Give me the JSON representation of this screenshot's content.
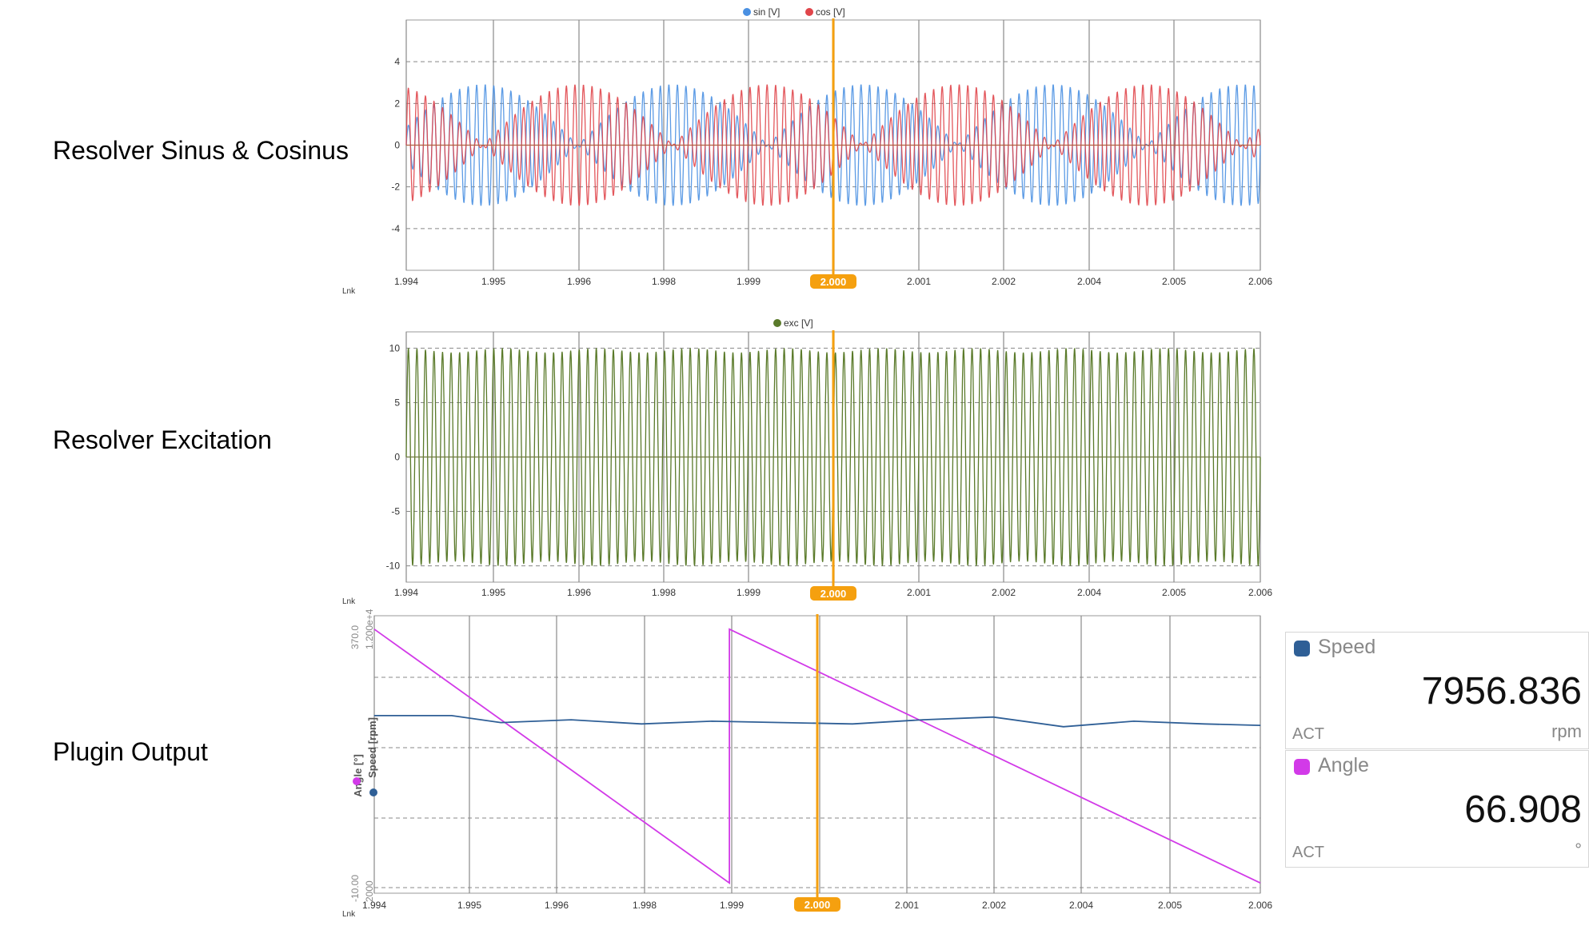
{
  "row_labels": [
    "Resolver Sinus & Cosinus",
    "Resolver Excitation",
    "Plugin Output"
  ],
  "x_ticks": [
    "1.994",
    "1.995",
    "1.996",
    "1.998",
    "1.999",
    "2.000",
    "2.001",
    "2.002",
    "2.004",
    "2.005",
    "2.006"
  ],
  "cursor_label": "2.000",
  "lnk_label": "Lnk",
  "colors": {
    "sin": "#4a90e2",
    "cos": "#e0454a",
    "exc": "#5a7a2a",
    "angle": "#d23ae8",
    "speed": "#2f5f96",
    "cursor": "#f5a00f",
    "grid": "#808080"
  },
  "chart_data": [
    {
      "type": "line",
      "legend": [
        "sin [V]",
        "cos [V]"
      ],
      "y_ticks": [
        "4",
        "2",
        "0",
        "-2",
        "-4"
      ],
      "ylim": [
        -6,
        6
      ],
      "xlim": [
        1.9937,
        2.0063
      ],
      "series": [
        {
          "name": "sin [V]",
          "description_values": {
            "amplitude": 2.9,
            "carrier_cycles": 100,
            "envelope": "sin"
          }
        },
        {
          "name": "cos [V]",
          "description_values": {
            "amplitude": 2.9,
            "carrier_cycles": 100,
            "envelope": "cos"
          }
        }
      ],
      "cursor_x": 2.0
    },
    {
      "type": "line",
      "legend": [
        "exc [V]"
      ],
      "y_ticks": [
        "10",
        "5",
        "0",
        "-5",
        "-10"
      ],
      "ylim": [
        -11.5,
        11.5
      ],
      "xlim": [
        1.9937,
        2.0063
      ],
      "series": [
        {
          "name": "exc [V]",
          "description_values": {
            "amplitude": 10,
            "carrier_cycles": 100
          }
        }
      ],
      "cursor_x": 2.0
    },
    {
      "type": "line",
      "axes": [
        {
          "name": "Angle [°]",
          "top": "370.0",
          "bottom": "-10.00"
        },
        {
          "name": "Speed [rpm]",
          "top": "1.200e+4",
          "bottom": "2000"
        }
      ],
      "xlim": [
        1.9937,
        2.0063
      ],
      "series": [
        {
          "name": "Angle [°]",
          "x": [
            1.9937,
            1.99875,
            1.99875,
            2.0063
          ],
          "y": [
            360,
            0,
            360,
            0
          ]
        },
        {
          "name": "Speed [rpm]",
          "x": [
            1.9937,
            1.9948,
            1.9955,
            1.9965,
            1.9975,
            1.9985,
            1.9995,
            2.0005,
            2.0015,
            2.0025,
            2.0035,
            2.0045,
            2.0055,
            2.0063
          ],
          "y": [
            8400,
            8400,
            8150,
            8250,
            8100,
            8200,
            8150,
            8100,
            8250,
            8350,
            8000,
            8200,
            8100,
            8050
          ]
        }
      ],
      "cursor_x": 2.0
    }
  ],
  "cards": [
    {
      "name": "Speed",
      "value": "7956.836",
      "act": "ACT",
      "unit": "rpm",
      "color": "#2f5f96"
    },
    {
      "name": "Angle",
      "value": "66.908",
      "act": "ACT",
      "unit": "°",
      "color": "#d23ae8"
    }
  ]
}
